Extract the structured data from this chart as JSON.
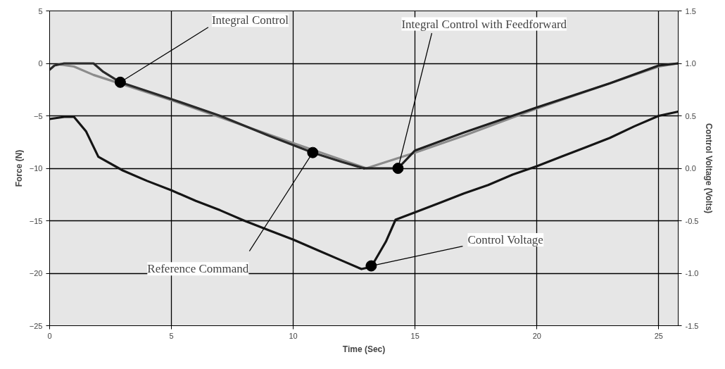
{
  "chart_data": {
    "type": "line",
    "xlabel": "Time (Sec)",
    "ylabel": "Force (N)",
    "y2label": "Control Voltage (Volts)",
    "xlim": [
      0,
      25.8
    ],
    "xticks": [
      0,
      5,
      10,
      15,
      20,
      25
    ],
    "ylim": [
      -25,
      5
    ],
    "yticks": [
      -25,
      -20,
      -15,
      -10,
      -5,
      0,
      5
    ],
    "y2lim": [
      -1.5,
      1.5
    ],
    "y2ticks": [
      {
        "value": -1.5,
        "label": "-1.5"
      },
      {
        "value": -1,
        "label": "-1.0"
      },
      {
        "value": -0.5,
        "label": "-0.5"
      },
      {
        "value": 0,
        "label": "0.0"
      },
      {
        "value": 0.5,
        "label": "0.5"
      },
      {
        "value": 1,
        "label": "1.0"
      },
      {
        "value": 1.5,
        "label": "1.5"
      }
    ],
    "grid": true,
    "marker": "none",
    "line_style": "solid",
    "series": [
      {
        "color": "#8c8c8c",
        "x": [
          0.4,
          1,
          1.8,
          5,
          10,
          13,
          15,
          17,
          20,
          25,
          25.8
        ],
        "values": [
          -0.1,
          -0.3,
          -1.1,
          -3.5,
          -7.6,
          -10,
          -8.5,
          -6.9,
          -4.3,
          -0.3,
          0
        ]
      },
      {
        "color": "#2a2a2a",
        "x": [
          0,
          0.2,
          0.6,
          1,
          1.8,
          2.2,
          2.9,
          5,
          7,
          9,
          10.8,
          12,
          12.9
        ],
        "values": [
          -0.6,
          -0.2,
          0,
          0,
          0,
          -0.8,
          -1.8,
          -3.4,
          -5,
          -6.9,
          -8.5,
          -9.4,
          -10
        ]
      },
      {
        "color": "#1e1e1e",
        "x": [
          12.9,
          14.3,
          15,
          17,
          20,
          23,
          25,
          25.8
        ],
        "values": [
          -10,
          -10,
          -8.3,
          -6.6,
          -4.2,
          -1.9,
          -0.2,
          0
        ]
      },
      {
        "color": "#151515",
        "axis": "y2",
        "x": [
          0,
          0.6,
          1,
          1.5,
          2,
          3,
          4,
          5,
          6,
          7,
          8,
          9,
          10,
          11,
          12,
          12.8,
          13.2,
          13.8,
          14.2,
          15,
          16,
          17,
          18,
          19,
          20,
          21,
          22,
          23,
          24,
          25,
          25.8
        ],
        "values": [
          0.47,
          0.49,
          0.49,
          0.35,
          0.11,
          -0.02,
          -0.12,
          -0.21,
          -0.31,
          -0.4,
          -0.5,
          -0.59,
          -0.68,
          -0.78,
          -0.88,
          -0.96,
          -0.94,
          -0.7,
          -0.49,
          -0.42,
          -0.33,
          -0.24,
          -0.16,
          -0.06,
          0.02,
          0.11,
          0.2,
          0.29,
          0.4,
          0.5,
          0.54
        ]
      }
    ],
    "annotations": [
      {
        "text": "Integral Control",
        "x": 2.9,
        "y": -1.8
      },
      {
        "text": "Reference Command",
        "x": 10.8,
        "y": -8.5
      },
      {
        "text": "Integral Control with Feedforward",
        "x": 14.3,
        "y": -10
      },
      {
        "text": "Control Voltage",
        "x": 13.2,
        "y": -19.3
      }
    ]
  }
}
